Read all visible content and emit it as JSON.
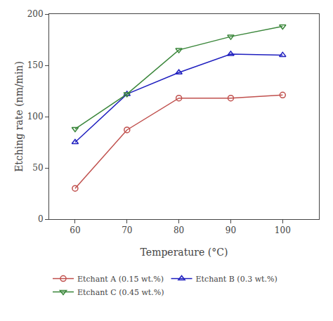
{
  "chart_data": {
    "type": "line",
    "xlabel": "Temperature (°C)",
    "ylabel": "Etching rate (nm/min)",
    "x": [
      60,
      70,
      80,
      90,
      100
    ],
    "series": [
      {
        "name": "Etchant A (0.15 wt.%)",
        "color": "#c0504d",
        "marker": "circle",
        "values": [
          30,
          87,
          118,
          118,
          121
        ]
      },
      {
        "name": "Etchant B (0.3 wt.%)",
        "color": "#1f1fbf",
        "marker": "triangle-up",
        "values": [
          75,
          122,
          143,
          161,
          160
        ]
      },
      {
        "name": "Etchant C (0.45 wt.%)",
        "color": "#3a863a",
        "marker": "triangle-down",
        "values": [
          88,
          122,
          165,
          178,
          188
        ]
      }
    ],
    "xlim": [
      55,
      107
    ],
    "ylim": [
      0,
      200
    ],
    "xticks": [
      60,
      70,
      80,
      90,
      100
    ],
    "yticks": [
      0,
      50,
      100,
      150,
      200
    ],
    "grid": false,
    "legend": "bottom"
  }
}
